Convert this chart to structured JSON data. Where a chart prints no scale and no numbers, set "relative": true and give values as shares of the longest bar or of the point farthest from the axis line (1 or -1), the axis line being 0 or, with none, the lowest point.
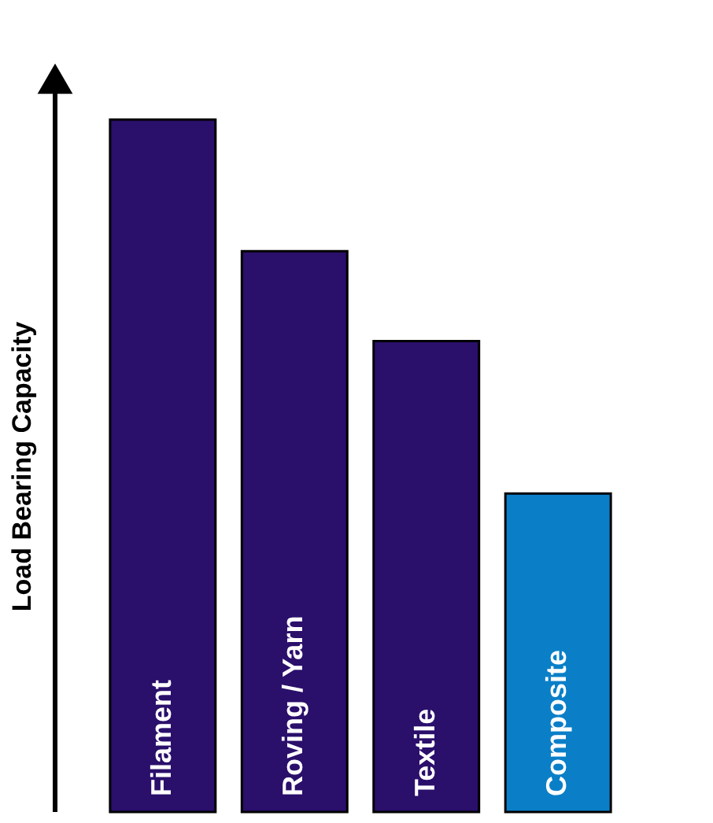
{
  "chart_data": {
    "type": "bar",
    "relative": true,
    "ylabel": "Load Bearing Capacity",
    "categories": [
      "Filament",
      "Roving / Yarn",
      "Textile",
      "Composite"
    ],
    "values": [
      1,
      0.81,
      0.68,
      0.46
    ],
    "colors": [
      "#2a0f6b",
      "#2a0f6b",
      "#2a0f6b",
      "#0a7fc8"
    ]
  }
}
